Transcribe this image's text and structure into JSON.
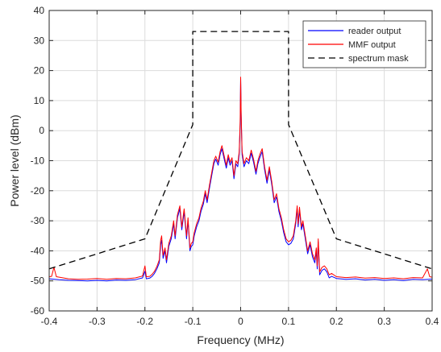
{
  "chart_data": {
    "type": "line",
    "xlabel": "Frequency (MHz)",
    "ylabel": "Power level (dBm)",
    "xlim": [
      -0.4,
      0.4
    ],
    "ylim": [
      -60,
      40
    ],
    "xticks": [
      -0.4,
      -0.3,
      -0.2,
      -0.1,
      0,
      0.1,
      0.2,
      0.3,
      0.4
    ],
    "xtick_labels": [
      "-0.4",
      "-0.3",
      "-0.2",
      "-0.1",
      "0",
      "0.1",
      "0.2",
      "0.3",
      "0.4"
    ],
    "yticks": [
      -60,
      -50,
      -40,
      -30,
      -20,
      -10,
      0,
      10,
      20,
      30,
      40
    ],
    "ytick_labels": [
      "-60",
      "-50",
      "-40",
      "-30",
      "-20",
      "-10",
      "0",
      "10",
      "20",
      "30",
      "40"
    ],
    "grid": true,
    "legend_position": "top-right",
    "series": [
      {
        "name": "reader output",
        "color": "#0000ff",
        "style": "solid",
        "points": [
          [
            -0.4,
            -49.3
          ],
          [
            -0.38,
            -49.6
          ],
          [
            -0.36,
            -49.8
          ],
          [
            -0.34,
            -49.9
          ],
          [
            -0.32,
            -50
          ],
          [
            -0.3,
            -49.8
          ],
          [
            -0.28,
            -50
          ],
          [
            -0.26,
            -49.7
          ],
          [
            -0.24,
            -49.8
          ],
          [
            -0.22,
            -49.6
          ],
          [
            -0.205,
            -49
          ],
          [
            -0.2,
            -46.8
          ],
          [
            -0.197,
            -49.3
          ],
          [
            -0.19,
            -49.1
          ],
          [
            -0.185,
            -48.5
          ],
          [
            -0.18,
            -47.5
          ],
          [
            -0.175,
            -46
          ],
          [
            -0.17,
            -44
          ],
          [
            -0.167,
            -38
          ],
          [
            -0.165,
            -36.5
          ],
          [
            -0.162,
            -42.5
          ],
          [
            -0.158,
            -40
          ],
          [
            -0.155,
            -44
          ],
          [
            -0.15,
            -38.5
          ],
          [
            -0.145,
            -36
          ],
          [
            -0.14,
            -31
          ],
          [
            -0.137,
            -36
          ],
          [
            -0.132,
            -29
          ],
          [
            -0.127,
            -26
          ],
          [
            -0.123,
            -33
          ],
          [
            -0.118,
            -27
          ],
          [
            -0.113,
            -36
          ],
          [
            -0.11,
            -30
          ],
          [
            -0.106,
            -40
          ],
          [
            -0.103,
            -38.5
          ],
          [
            -0.1,
            -38
          ],
          [
            -0.097,
            -35
          ],
          [
            -0.092,
            -32
          ],
          [
            -0.087,
            -30
          ],
          [
            -0.083,
            -27
          ],
          [
            -0.078,
            -24.5
          ],
          [
            -0.074,
            -21
          ],
          [
            -0.07,
            -24
          ],
          [
            -0.065,
            -19
          ],
          [
            -0.06,
            -14.5
          ],
          [
            -0.056,
            -11
          ],
          [
            -0.052,
            -9.5
          ],
          [
            -0.047,
            -11.5
          ],
          [
            -0.043,
            -8
          ],
          [
            -0.039,
            -6
          ],
          [
            -0.035,
            -9
          ],
          [
            -0.03,
            -12.5
          ],
          [
            -0.026,
            -9
          ],
          [
            -0.022,
            -11.5
          ],
          [
            -0.018,
            -10
          ],
          [
            -0.014,
            -16
          ],
          [
            -0.01,
            -11
          ],
          [
            -0.006,
            -12
          ],
          [
            -0.003,
            -8
          ],
          [
            -0.001,
            2
          ],
          [
            0,
            17.5
          ],
          [
            0.001,
            5
          ],
          [
            0.003,
            -8
          ],
          [
            0.007,
            -12
          ],
          [
            0.012,
            -10
          ],
          [
            0.017,
            -11
          ],
          [
            0.022,
            -7.5
          ],
          [
            0.027,
            -10.5
          ],
          [
            0.032,
            -14.5
          ],
          [
            0.036,
            -11
          ],
          [
            0.04,
            -9
          ],
          [
            0.045,
            -7
          ],
          [
            0.05,
            -13
          ],
          [
            0.055,
            -17.5
          ],
          [
            0.06,
            -13
          ],
          [
            0.065,
            -18
          ],
          [
            0.07,
            -24
          ],
          [
            0.075,
            -22
          ],
          [
            0.08,
            -27
          ],
          [
            0.085,
            -30
          ],
          [
            0.09,
            -34
          ],
          [
            0.095,
            -37
          ],
          [
            0.1,
            -38
          ],
          [
            0.105,
            -37.5
          ],
          [
            0.11,
            -36
          ],
          [
            0.115,
            -31
          ],
          [
            0.118,
            -26
          ],
          [
            0.12,
            -32
          ],
          [
            0.123,
            -26.5
          ],
          [
            0.127,
            -33
          ],
          [
            0.13,
            -31
          ],
          [
            0.135,
            -36
          ],
          [
            0.14,
            -41
          ],
          [
            0.145,
            -38
          ],
          [
            0.15,
            -42
          ],
          [
            0.155,
            -44
          ],
          [
            0.158,
            -40
          ],
          [
            0.16,
            -46
          ],
          [
            0.162,
            -37
          ],
          [
            0.165,
            -48
          ],
          [
            0.17,
            -46.5
          ],
          [
            0.175,
            -46
          ],
          [
            0.18,
            -47
          ],
          [
            0.185,
            -49
          ],
          [
            0.19,
            -48.5
          ],
          [
            0.2,
            -49.2
          ],
          [
            0.22,
            -49.5
          ],
          [
            0.24,
            -49.3
          ],
          [
            0.26,
            -49.7
          ],
          [
            0.28,
            -49.5
          ],
          [
            0.3,
            -49.8
          ],
          [
            0.32,
            -49.6
          ],
          [
            0.34,
            -49.9
          ],
          [
            0.36,
            -49.5
          ],
          [
            0.38,
            -49.6
          ],
          [
            0.4,
            -49.4
          ]
        ]
      },
      {
        "name": "MMF output",
        "color": "#ff0000",
        "style": "solid",
        "points": [
          [
            -0.4,
            -48.6
          ],
          [
            -0.395,
            -48.5
          ],
          [
            -0.39,
            -45.5
          ],
          [
            -0.385,
            -48.6
          ],
          [
            -0.36,
            -49.3
          ],
          [
            -0.34,
            -49.5
          ],
          [
            -0.32,
            -49.4
          ],
          [
            -0.3,
            -49.2
          ],
          [
            -0.28,
            -49.5
          ],
          [
            -0.26,
            -49.2
          ],
          [
            -0.24,
            -49.3
          ],
          [
            -0.22,
            -49
          ],
          [
            -0.205,
            -48.4
          ],
          [
            -0.2,
            -45
          ],
          [
            -0.197,
            -48.6
          ],
          [
            -0.19,
            -48.5
          ],
          [
            -0.185,
            -47.8
          ],
          [
            -0.18,
            -46.8
          ],
          [
            -0.175,
            -45.2
          ],
          [
            -0.17,
            -43
          ],
          [
            -0.167,
            -36.5
          ],
          [
            -0.165,
            -35
          ],
          [
            -0.162,
            -41.5
          ],
          [
            -0.158,
            -39
          ],
          [
            -0.155,
            -43
          ],
          [
            -0.15,
            -37.5
          ],
          [
            -0.145,
            -35
          ],
          [
            -0.14,
            -30
          ],
          [
            -0.137,
            -35
          ],
          [
            -0.132,
            -28
          ],
          [
            -0.127,
            -25
          ],
          [
            -0.123,
            -32
          ],
          [
            -0.118,
            -26
          ],
          [
            -0.113,
            -35
          ],
          [
            -0.11,
            -29
          ],
          [
            -0.106,
            -39
          ],
          [
            -0.103,
            -37.5
          ],
          [
            -0.1,
            -37
          ],
          [
            -0.097,
            -34
          ],
          [
            -0.092,
            -31
          ],
          [
            -0.087,
            -29
          ],
          [
            -0.083,
            -26
          ],
          [
            -0.078,
            -23.5
          ],
          [
            -0.074,
            -20
          ],
          [
            -0.07,
            -23
          ],
          [
            -0.065,
            -18
          ],
          [
            -0.06,
            -13.5
          ],
          [
            -0.056,
            -10
          ],
          [
            -0.052,
            -8.5
          ],
          [
            -0.047,
            -10.5
          ],
          [
            -0.043,
            -7
          ],
          [
            -0.039,
            -5
          ],
          [
            -0.035,
            -8
          ],
          [
            -0.03,
            -11.5
          ],
          [
            -0.026,
            -8
          ],
          [
            -0.022,
            -10.5
          ],
          [
            -0.018,
            -9
          ],
          [
            -0.014,
            -15
          ],
          [
            -0.01,
            -10
          ],
          [
            -0.006,
            -11
          ],
          [
            -0.003,
            -7
          ],
          [
            -0.001,
            3
          ],
          [
            0,
            17.8
          ],
          [
            0.001,
            6
          ],
          [
            0.003,
            -7
          ],
          [
            0.007,
            -11
          ],
          [
            0.012,
            -9
          ],
          [
            0.017,
            -10
          ],
          [
            0.022,
            -6.5
          ],
          [
            0.027,
            -9.5
          ],
          [
            0.032,
            -13.5
          ],
          [
            0.036,
            -10
          ],
          [
            0.04,
            -8
          ],
          [
            0.045,
            -6
          ],
          [
            0.05,
            -12
          ],
          [
            0.055,
            -16.5
          ],
          [
            0.06,
            -12
          ],
          [
            0.065,
            -17
          ],
          [
            0.07,
            -23
          ],
          [
            0.075,
            -21
          ],
          [
            0.08,
            -26
          ],
          [
            0.085,
            -29
          ],
          [
            0.09,
            -33
          ],
          [
            0.095,
            -36
          ],
          [
            0.1,
            -37
          ],
          [
            0.105,
            -36.5
          ],
          [
            0.11,
            -35
          ],
          [
            0.115,
            -30
          ],
          [
            0.118,
            -25
          ],
          [
            0.12,
            -31
          ],
          [
            0.123,
            -25.5
          ],
          [
            0.127,
            -32
          ],
          [
            0.13,
            -30
          ],
          [
            0.135,
            -35
          ],
          [
            0.14,
            -40
          ],
          [
            0.145,
            -37
          ],
          [
            0.15,
            -41
          ],
          [
            0.155,
            -43
          ],
          [
            0.158,
            -39
          ],
          [
            0.16,
            -45
          ],
          [
            0.162,
            -36
          ],
          [
            0.165,
            -47
          ],
          [
            0.17,
            -45.5
          ],
          [
            0.175,
            -45
          ],
          [
            0.18,
            -46
          ],
          [
            0.185,
            -48
          ],
          [
            0.19,
            -47.5
          ],
          [
            0.2,
            -48.6
          ],
          [
            0.22,
            -48.9
          ],
          [
            0.24,
            -48.7
          ],
          [
            0.26,
            -49.1
          ],
          [
            0.28,
            -48.9
          ],
          [
            0.3,
            -49.2
          ],
          [
            0.32,
            -49
          ],
          [
            0.34,
            -49.3
          ],
          [
            0.36,
            -48.9
          ],
          [
            0.38,
            -49
          ],
          [
            0.39,
            -46
          ],
          [
            0.395,
            -48.6
          ],
          [
            0.4,
            -48.8
          ]
        ]
      },
      {
        "name": "spectrum mask",
        "color": "#000000",
        "style": "dashed",
        "points": [
          [
            -0.4,
            -46
          ],
          [
            -0.2,
            -36
          ],
          [
            -0.1,
            2
          ],
          [
            -0.1,
            33
          ],
          [
            0.1,
            33
          ],
          [
            0.1,
            2
          ],
          [
            0.2,
            -36
          ],
          [
            0.4,
            -46
          ]
        ]
      }
    ]
  }
}
